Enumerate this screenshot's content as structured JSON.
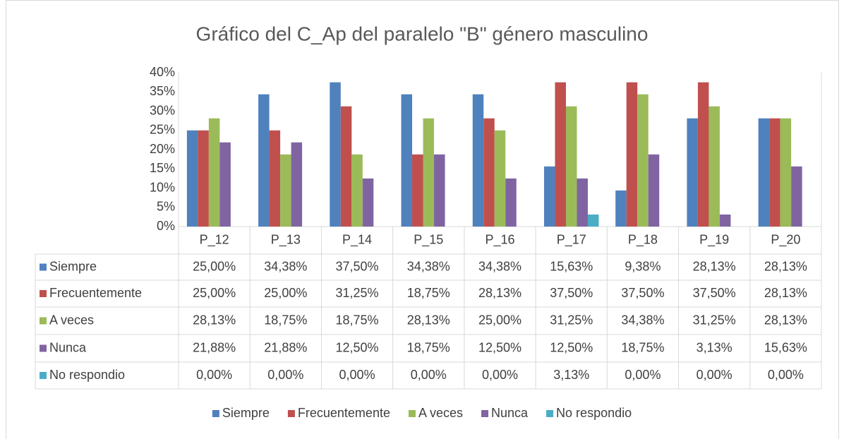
{
  "chart_data": {
    "type": "bar",
    "title": "Gráfico del C_Ap del paralelo \"B\" género masculino",
    "categories": [
      "P_12",
      "P_13",
      "P_14",
      "P_15",
      "P_16",
      "P_17",
      "P_18",
      "P_19",
      "P_20"
    ],
    "series": [
      {
        "name": "Siempre",
        "color": "#4f81bd",
        "values": [
          25.0,
          34.38,
          37.5,
          34.38,
          34.38,
          15.63,
          9.38,
          28.13,
          28.13
        ],
        "value_labels": [
          "25,00%",
          "34,38%",
          "37,50%",
          "34,38%",
          "34,38%",
          "15,63%",
          "9,38%",
          "28,13%",
          "28,13%"
        ]
      },
      {
        "name": "Frecuentemente",
        "color": "#c0504d",
        "values": [
          25.0,
          25.0,
          31.25,
          18.75,
          28.13,
          37.5,
          37.5,
          37.5,
          28.13
        ],
        "value_labels": [
          "25,00%",
          "25,00%",
          "31,25%",
          "18,75%",
          "28,13%",
          "37,50%",
          "37,50%",
          "37,50%",
          "28,13%"
        ]
      },
      {
        "name": "A veces",
        "color": "#9bbb59",
        "values": [
          28.13,
          18.75,
          18.75,
          28.13,
          25.0,
          31.25,
          34.38,
          31.25,
          28.13
        ],
        "value_labels": [
          "28,13%",
          "18,75%",
          "18,75%",
          "28,13%",
          "25,00%",
          "31,25%",
          "34,38%",
          "31,25%",
          "28,13%"
        ]
      },
      {
        "name": "Nunca",
        "color": "#8064a2",
        "values": [
          21.88,
          21.88,
          12.5,
          18.75,
          12.5,
          12.5,
          18.75,
          3.13,
          15.63
        ],
        "value_labels": [
          "21,88%",
          "21,88%",
          "12,50%",
          "18,75%",
          "12,50%",
          "12,50%",
          "18,75%",
          "3,13%",
          "15,63%"
        ]
      },
      {
        "name": "No respondio",
        "color": "#4bacc6",
        "values": [
          0.0,
          0.0,
          0.0,
          0.0,
          0.0,
          3.13,
          0.0,
          0.0,
          0.0
        ],
        "value_labels": [
          "0,00%",
          "0,00%",
          "0,00%",
          "0,00%",
          "0,00%",
          "3,13%",
          "0,00%",
          "0,00%",
          "0,00%"
        ]
      }
    ],
    "ylim": [
      0,
      40
    ],
    "yticks": [
      {
        "value": 0,
        "label": "0%"
      },
      {
        "value": 5,
        "label": "5%"
      },
      {
        "value": 10,
        "label": "10%"
      },
      {
        "value": 15,
        "label": "15%"
      },
      {
        "value": 20,
        "label": "20%"
      },
      {
        "value": 25,
        "label": "25%"
      },
      {
        "value": 30,
        "label": "30%"
      },
      {
        "value": 35,
        "label": "35%"
      },
      {
        "value": 40,
        "label": "40%"
      }
    ],
    "grid": false,
    "legend": "bottom"
  }
}
